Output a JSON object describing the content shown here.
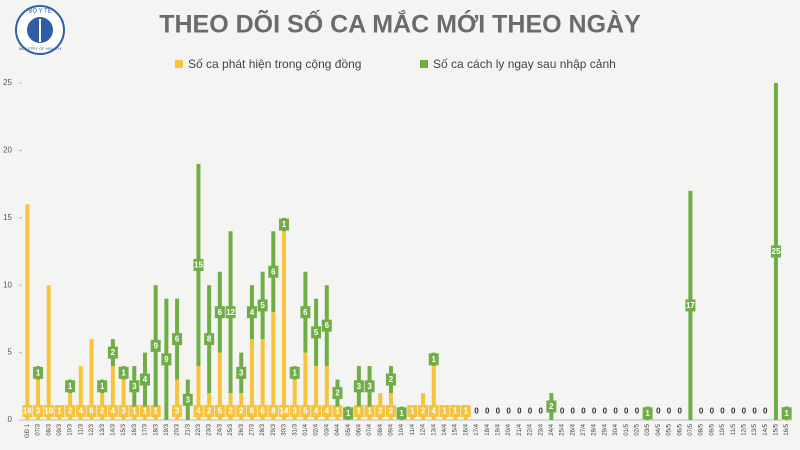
{
  "logo": {
    "top": "BỘ Y TẾ",
    "bottom": "MINISTRY OF HEALTH"
  },
  "chart_data": {
    "type": "stacked_bar",
    "title": "THEO DÕI SỐ CA MẮC MỚI THEO NGÀY",
    "categories": [
      "GĐ 1",
      "07/3",
      "08/3",
      "09/3",
      "10/3",
      "11/3",
      "12/3",
      "13/3",
      "14/3",
      "15/3",
      "16/3",
      "17/3",
      "18/3",
      "19/3",
      "20/3",
      "21/3",
      "22/3",
      "23/3",
      "24/3",
      "25/3",
      "26/3",
      "27/3",
      "28/3",
      "29/3",
      "30/3",
      "31/3",
      "01/4",
      "02/4",
      "03/4",
      "04/4",
      "05/4",
      "06/4",
      "07/4",
      "08/4",
      "09/4",
      "10/4",
      "11/4",
      "12/4",
      "13/4",
      "14/4",
      "15/4",
      "16/4",
      "17/4",
      "18/4",
      "19/4",
      "20/4",
      "21/4",
      "22/4",
      "23/4",
      "24/4",
      "25/4",
      "26/4",
      "27/4",
      "28/4",
      "29/4",
      "30/4",
      "01/5",
      "02/5",
      "03/5",
      "04/5",
      "05/5",
      "06/5",
      "07/5",
      "08/5",
      "09/5",
      "10/5",
      "11/5",
      "12/5",
      "13/5",
      "14/5",
      "15/5",
      "16/5"
    ],
    "series": [
      {
        "name": "Số ca phát hiện trong cộng đồng",
        "color": "#f7c33a",
        "values": [
          16,
          3,
          10,
          1,
          2,
          4,
          6,
          2,
          4,
          3,
          1,
          1,
          1,
          0,
          3,
          0,
          4,
          2,
          5,
          2,
          2,
          6,
          6,
          8,
          14,
          3,
          5,
          4,
          4,
          1,
          0,
          1,
          1,
          2,
          2,
          0,
          1,
          2,
          4,
          1,
          1,
          1,
          0,
          0,
          0,
          0,
          0,
          0,
          0,
          0,
          0,
          0,
          0,
          0,
          0,
          0,
          0,
          0,
          0,
          0,
          0,
          0,
          0,
          0,
          0,
          0,
          0,
          0,
          0,
          0,
          0,
          0
        ]
      },
      {
        "name": "Số ca cách ly ngay sau nhập cảnh",
        "color": "#70ad47",
        "values": [
          0,
          1,
          0,
          0,
          1,
          0,
          0,
          1,
          2,
          1,
          3,
          4,
          9,
          9,
          6,
          3,
          15,
          8,
          6,
          12,
          3,
          4,
          5,
          6,
          1,
          1,
          6,
          5,
          6,
          2,
          1,
          3,
          3,
          0,
          2,
          1,
          0,
          0,
          1,
          0,
          0,
          0,
          0,
          0,
          0,
          0,
          0,
          0,
          0,
          2,
          0,
          0,
          0,
          0,
          0,
          0,
          0,
          0,
          1,
          0,
          0,
          0,
          17,
          0,
          0,
          0,
          0,
          0,
          0,
          0,
          25,
          1
        ]
      }
    ],
    "ylim": [
      0,
      25
    ],
    "yticks": [
      0,
      5,
      10,
      15,
      20,
      25
    ],
    "grid": false,
    "legend": "top"
  }
}
